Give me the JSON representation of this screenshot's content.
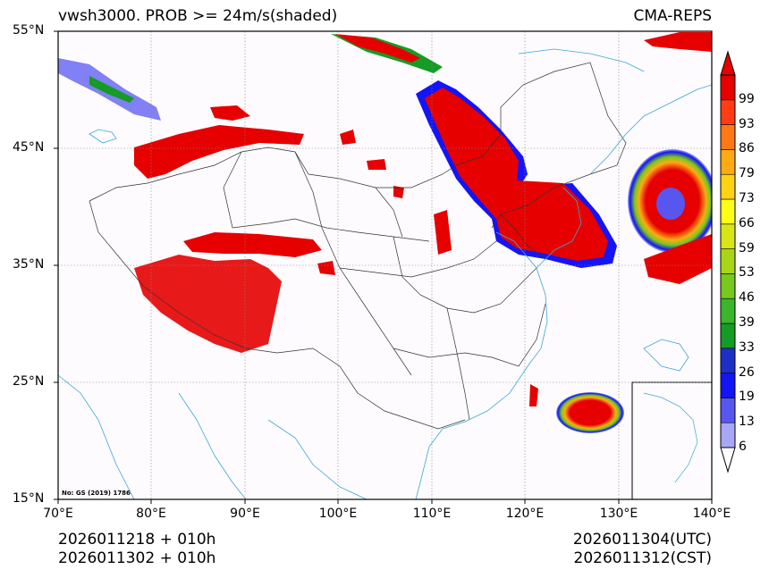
{
  "title": {
    "left": "vwsh3000. PROB >= 24m/s(shaded)",
    "right": "CMA-REPS"
  },
  "axes": {
    "lat_labels": [
      "55°N",
      "45°N",
      "35°N",
      "25°N",
      "15°N"
    ],
    "lon_labels": [
      "70°E",
      "80°E",
      "90°E",
      "100°E",
      "110°E",
      "120°E",
      "130°E",
      "140°E"
    ]
  },
  "colorbar": {
    "levels": [
      "6",
      "13",
      "19",
      "26",
      "33",
      "39",
      "46",
      "53",
      "59",
      "66",
      "73",
      "79",
      "86",
      "93",
      "99"
    ],
    "colors": [
      "#a7a7f5",
      "#5757f0",
      "#1414f5",
      "#1e2fc8",
      "#149c24",
      "#3ab52c",
      "#78c81e",
      "#a8d514",
      "#d7e614",
      "#ffff14",
      "#ffd214",
      "#ffaa14",
      "#ff7814",
      "#ff3c14",
      "#e60000"
    ]
  },
  "footer": {
    "left_line1": "2026011218  +  010h",
    "left_line2": "2026011302  +  010h",
    "right_line1": "2026011304(UTC)",
    "right_line2": "2026011312(CST)"
  },
  "credit": "No: GS (2019) 1786",
  "colors": {
    "coast": "#3aa7d8",
    "border": "#333333",
    "prob_high": "#e60000",
    "prob_low": "#1414f5"
  }
}
